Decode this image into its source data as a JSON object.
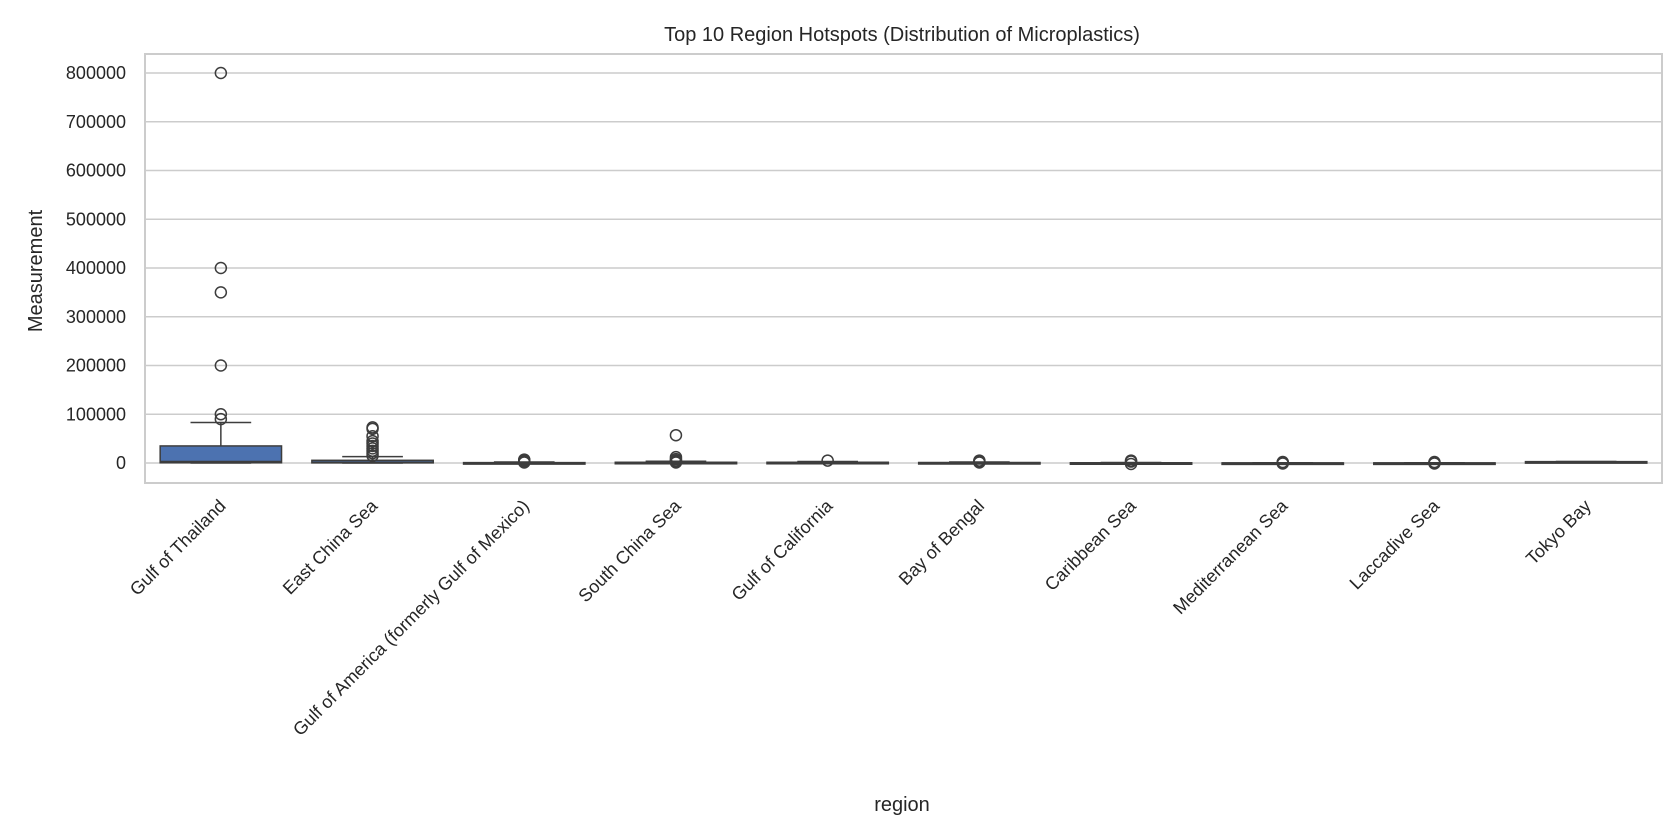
{
  "chart_data": {
    "type": "box",
    "title": "Top 10 Region Hotspots (Distribution of Microplastics)",
    "xlabel": "region",
    "ylabel": "Measurement",
    "ylim": [
      -40000,
      840000
    ],
    "yticks": [
      0,
      100000,
      200000,
      300000,
      400000,
      500000,
      600000,
      700000,
      800000
    ],
    "grid": "horizontal",
    "colors": {
      "box_fill": "#4c72b0",
      "line": "#3d3d3d",
      "grid": "#cccccc",
      "frame": "#cccccc"
    },
    "categories": [
      "Gulf of Thailand",
      "East China Sea",
      "Gulf of America (formerly Gulf of Mexico)",
      "South China Sea",
      "Gulf of California",
      "Bay of Bengal",
      "Caribbean Sea",
      "Mediterranean Sea",
      "Laccadive Sea",
      "Tokyo Bay"
    ],
    "boxes": [
      {
        "min": 0,
        "q1": 500,
        "median": 3000,
        "q3": 35000,
        "max": 83000,
        "outliers": [
          800000,
          400000,
          350000,
          200000,
          100000,
          90000
        ]
      },
      {
        "min": 0,
        "q1": 300,
        "median": 1500,
        "q3": 5500,
        "max": 13000,
        "outliers": [
          73000,
          70000,
          55000,
          45000,
          40000,
          35000,
          30000,
          25000,
          20000,
          15000
        ]
      },
      {
        "min": 0,
        "q1": 50,
        "median": 200,
        "q3": 800,
        "max": 2000,
        "outliers": [
          7000,
          5000,
          3000,
          1000
        ]
      },
      {
        "min": 0,
        "q1": 100,
        "median": 400,
        "q3": 1500,
        "max": 3500,
        "outliers": [
          57000,
          12000,
          8000,
          5000,
          3000,
          1000
        ]
      },
      {
        "min": 0,
        "q1": 200,
        "median": 800,
        "q3": 1500,
        "max": 3000,
        "outliers": [
          5000
        ]
      },
      {
        "min": 0,
        "q1": 100,
        "median": 500,
        "q3": 1000,
        "max": 2000,
        "outliers": [
          5000,
          3000,
          1000
        ]
      },
      {
        "min": 0,
        "q1": 20,
        "median": 100,
        "q3": 500,
        "max": 1000,
        "outliers": [
          5000,
          3000,
          -2000
        ]
      },
      {
        "min": 0,
        "q1": 10,
        "median": 50,
        "q3": 200,
        "max": 500,
        "outliers": [
          2000,
          1000,
          -1000
        ]
      },
      {
        "min": 0,
        "q1": 10,
        "median": 50,
        "q3": 200,
        "max": 500,
        "outliers": [
          2000,
          500,
          -1000
        ]
      },
      {
        "min": 2000,
        "q1": 2200,
        "median": 2500,
        "q3": 2800,
        "max": 3000,
        "outliers": []
      }
    ]
  }
}
